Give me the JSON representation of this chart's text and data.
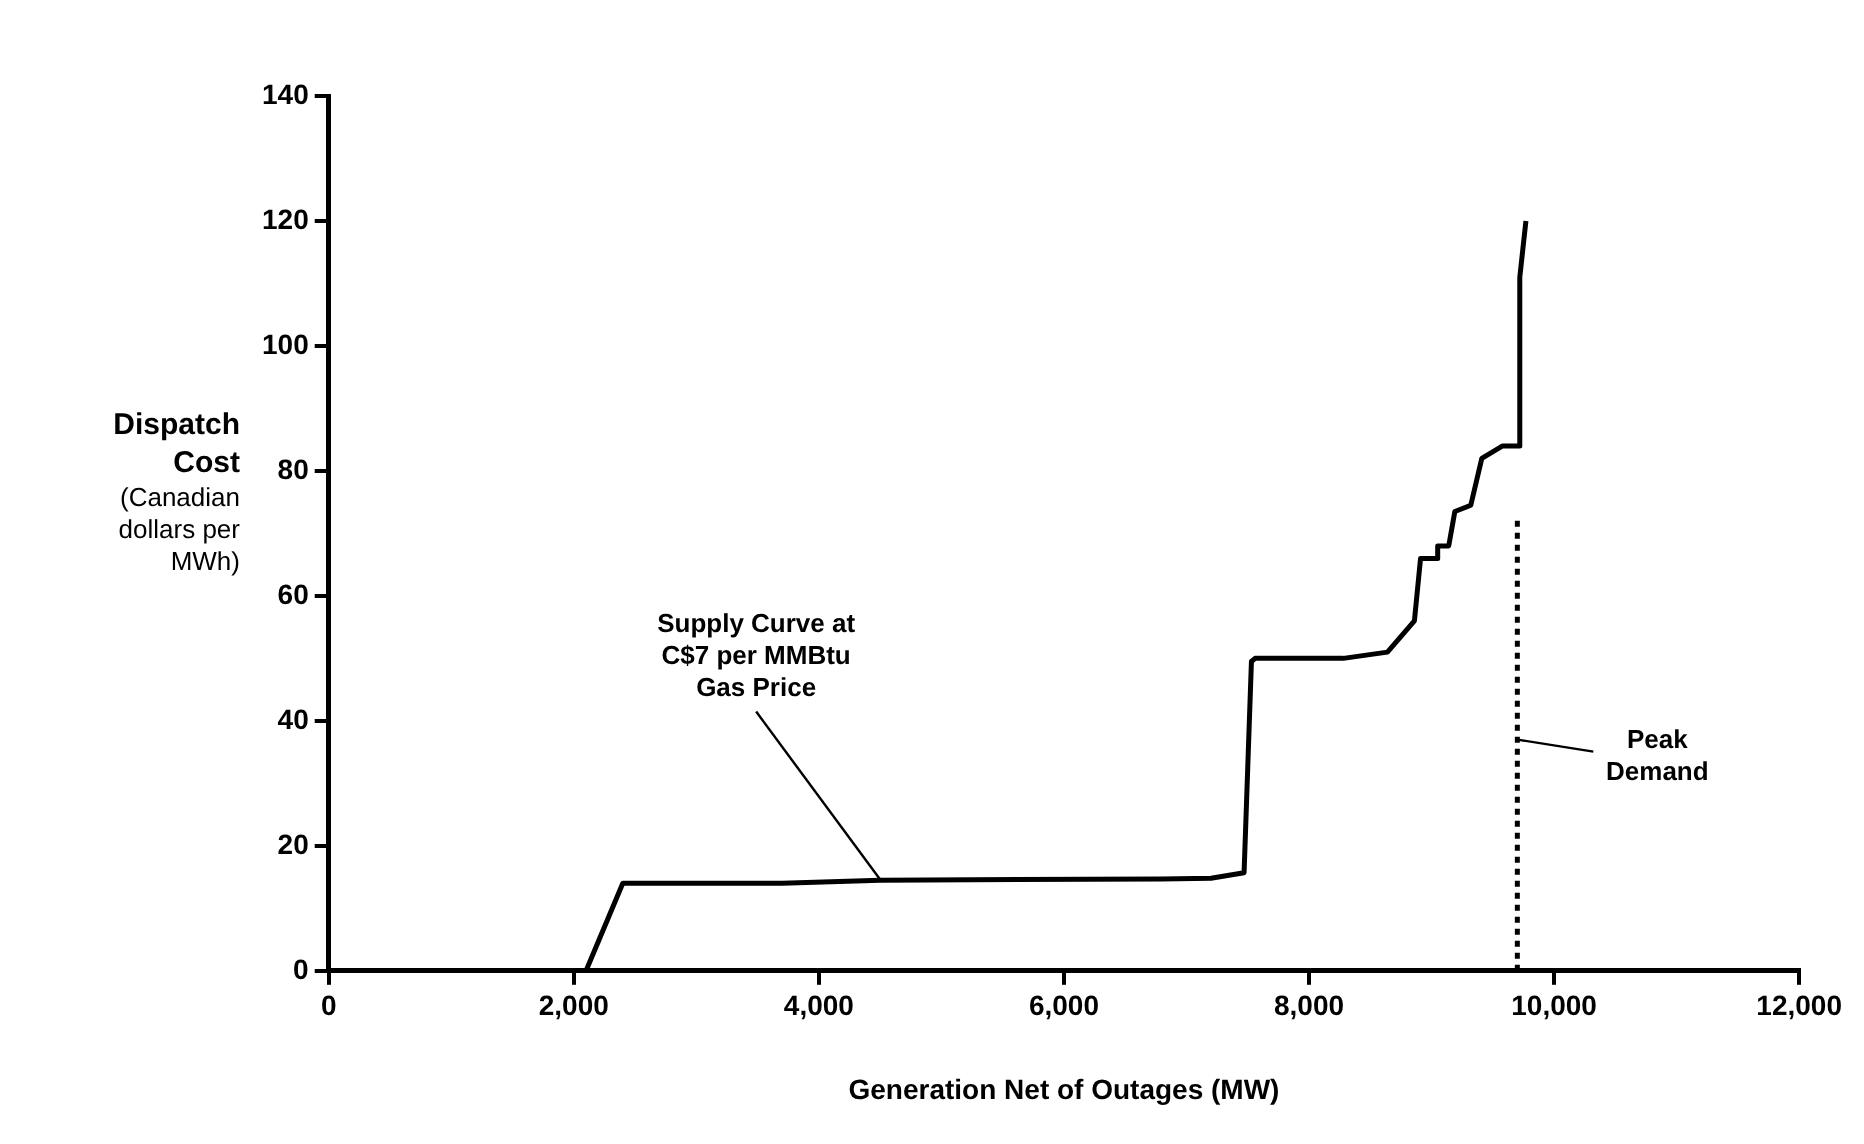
{
  "chart_data": {
    "type": "line",
    "xlabel": "Generation Net of Outages (MW)",
    "ylabel": "Dispatch Cost (Canadian dollars per MWh)",
    "series": [
      {
        "color": "#000000",
        "line_style": "solid",
        "x": [
          2100,
          2400,
          3700,
          4500,
          6800,
          7200,
          7470,
          7530,
          7560,
          8280,
          8640,
          8860,
          8910,
          9040,
          9050,
          9140,
          9190,
          9320,
          9410,
          9580,
          9710,
          9720,
          9770
        ],
        "values": [
          0,
          14,
          14,
          14.5,
          14.7,
          14.8,
          15.7,
          49.5,
          50,
          50,
          51,
          56,
          66,
          66,
          68,
          68,
          73.5,
          74.5,
          82,
          84,
          84,
          111,
          120
        ]
      },
      {
        "color": "#000000",
        "line_style": "dotted",
        "x": [
          9700,
          9700
        ],
        "values": [
          0,
          73
        ]
      }
    ],
    "annotations": [
      {
        "text": "Supply Curve at C$7 per MMBtu Gas Price",
        "x": 4500,
        "y": 14.6
      },
      {
        "text": "Peak Demand",
        "x": 9700,
        "y": 37
      }
    ],
    "xlim": [
      0,
      12000
    ],
    "xticks": [
      0,
      {
        "value": 2000,
        "label": "2,000"
      },
      {
        "value": 4000,
        "label": "4,000"
      },
      {
        "value": 6000,
        "label": "6,000"
      },
      {
        "value": 8000,
        "label": "8,000"
      },
      {
        "value": 10000,
        "label": "10,000"
      },
      {
        "value": 12000,
        "label": "12,000"
      }
    ],
    "ylim": [
      0,
      140
    ],
    "yticks": [
      0,
      20,
      40,
      60,
      80,
      100,
      120,
      140
    ],
    "grid": false,
    "legend": false,
    "marker": "none"
  }
}
